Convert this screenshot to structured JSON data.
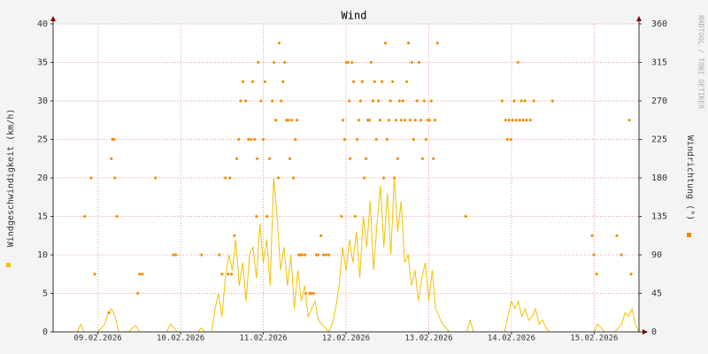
{
  "chart_data": {
    "type": "line",
    "title": "Wind",
    "ylabel": "Windgeschwindigkeit (km/h)",
    "y2label": "Windrichtung (°)",
    "watermark": "RRDTOOL / TOBI OETIKER",
    "xlim": [
      0,
      170
    ],
    "xticks": [
      {
        "value": 13,
        "label": "09.02.2026"
      },
      {
        "value": 37,
        "label": "10.02.2026"
      },
      {
        "value": 61,
        "label": "11.02.2026"
      },
      {
        "value": 85,
        "label": "12.02.2026"
      },
      {
        "value": 109,
        "label": "13.02.2026"
      },
      {
        "value": 133,
        "label": "14.02.2026"
      },
      {
        "value": 157,
        "label": "15.02.2026"
      }
    ],
    "ylim": [
      0,
      40
    ],
    "yticks": [
      0,
      5,
      10,
      15,
      20,
      25,
      30,
      35,
      40
    ],
    "y2lim": [
      0,
      360
    ],
    "y2ticks": [
      0,
      45,
      90,
      135,
      180,
      225,
      270,
      315,
      360
    ],
    "grid": true,
    "series": [
      {
        "color": "#f2c200",
        "style": "line",
        "x": [
          0,
          1,
          2,
          3,
          4,
          5,
          6,
          7,
          8,
          9,
          10,
          11,
          12,
          13,
          14,
          15,
          16,
          17,
          18,
          19,
          20,
          21,
          22,
          23,
          24,
          25,
          26,
          27,
          28,
          29,
          30,
          31,
          32,
          33,
          34,
          35,
          36,
          37,
          38,
          39,
          40,
          41,
          42,
          43,
          44,
          45,
          46,
          47,
          48,
          49,
          50,
          51,
          52,
          53,
          54,
          55,
          56,
          57,
          58,
          59,
          60,
          61,
          62,
          63,
          64,
          65,
          66,
          67,
          68,
          69,
          70,
          71,
          72,
          73,
          74,
          75,
          76,
          77,
          78,
          79,
          80,
          81,
          82,
          83,
          84,
          85,
          86,
          87,
          88,
          89,
          90,
          91,
          92,
          93,
          94,
          95,
          96,
          97,
          98,
          99,
          100,
          101,
          102,
          103,
          104,
          105,
          106,
          107,
          108,
          109,
          110,
          111,
          112,
          113,
          114,
          115,
          116,
          117,
          118,
          119,
          120,
          121,
          122,
          123,
          124,
          125,
          126,
          127,
          128,
          129,
          130,
          131,
          132,
          133,
          134,
          135,
          136,
          137,
          138,
          139,
          140,
          141,
          142,
          143,
          144,
          145,
          146,
          147,
          148,
          149,
          150,
          151,
          152,
          153,
          154,
          155,
          156,
          157,
          158,
          159,
          160,
          161,
          162,
          163,
          164,
          165,
          166,
          167,
          168,
          169,
          170
        ],
        "values": [
          0,
          0,
          0,
          0,
          0,
          0,
          0,
          0,
          1,
          0,
          0,
          0,
          0,
          0,
          0.5,
          1,
          2.5,
          3,
          2,
          0,
          0,
          0,
          0,
          0.5,
          0.8,
          0,
          0,
          0,
          0,
          0,
          0,
          0,
          0,
          0,
          1,
          0.5,
          0,
          0,
          0,
          0,
          0,
          0,
          0,
          0.5,
          0,
          0,
          0,
          3,
          5,
          2,
          7,
          10,
          8,
          12,
          6,
          9,
          4,
          10,
          11,
          7,
          14,
          9,
          12,
          6,
          20,
          15,
          8,
          11,
          6,
          10,
          3,
          8,
          4,
          6,
          2,
          3,
          4,
          1.5,
          1,
          0.5,
          0,
          1,
          3,
          6,
          11,
          8,
          12,
          9,
          13,
          7,
          15,
          11,
          17,
          8,
          14,
          19,
          11,
          18,
          10,
          20,
          13,
          17,
          9,
          10,
          6,
          8,
          4,
          7,
          9,
          4,
          8,
          3,
          2,
          1,
          0.5,
          0,
          0,
          0,
          0,
          0,
          0,
          1.5,
          0,
          0,
          0,
          0,
          0,
          0,
          0,
          0,
          0,
          0,
          2,
          4,
          3,
          4,
          2,
          3,
          1.5,
          2,
          3,
          1,
          1.5,
          0.5,
          0,
          0,
          0,
          0,
          0,
          0,
          0,
          0,
          0,
          0,
          0,
          0,
          0,
          0,
          1,
          0.5,
          0,
          0,
          0,
          0,
          0.5,
          1,
          2.5,
          2,
          3,
          1,
          0
        ]
      },
      {
        "color": "#f08c00",
        "style": "points",
        "axis": "y2",
        "x": [
          9.2,
          11,
          12.1,
          16.2,
          16.9,
          17.2,
          17.7,
          17.9,
          18.5,
          24.6,
          25.1,
          25.9,
          29.7,
          34.9,
          35.6,
          43.1,
          48.2,
          49,
          50,
          50.8,
          51.3,
          51.8,
          52.6,
          53.3,
          53.9,
          54.4,
          55.1,
          55.9,
          56.7,
          57.4,
          57.9,
          58.5,
          59,
          59.2,
          59.5,
          60.3,
          61,
          61.5,
          62.1,
          62.8,
          63.6,
          64.1,
          64.6,
          65.4,
          65.6,
          66.2,
          66.7,
          67.2,
          67.7,
          68.2,
          68.7,
          69.2,
          69.7,
          70.3,
          70.8,
          71.3,
          71.8,
          72.3,
          73.1,
          73.3,
          74.4,
          74.9,
          75.6,
          76.4,
          76.9,
          77.7,
          78.5,
          79.2,
          80,
          83.6,
          84.1,
          84.6,
          85.1,
          85.6,
          85.9,
          86.2,
          86.7,
          87.2,
          87.7,
          88.2,
          88.7,
          89.2,
          89.7,
          90.3,
          90.8,
          91.3,
          91.8,
          92.3,
          92.8,
          93.3,
          93.8,
          94.4,
          94.9,
          95.4,
          95.9,
          96.4,
          96.9,
          97.4,
          97.9,
          98.5,
          99,
          99.5,
          100,
          100.5,
          101,
          101.5,
          102.1,
          102.6,
          103.1,
          103.6,
          104.1,
          104.6,
          105.1,
          105.6,
          106.2,
          106.7,
          107.2,
          107.7,
          108.2,
          108.7,
          109.2,
          109.7,
          110.3,
          110.8,
          111.5,
          119.7,
          130.3,
          131.3,
          131.8,
          132.3,
          132.8,
          133.3,
          133.8,
          134.4,
          134.9,
          135.4,
          135.9,
          136.4,
          136.9,
          137.4,
          138.5,
          139.5,
          144.9,
          156.4,
          156.9,
          157.7,
          163.6,
          164.9,
          167.2,
          167.7
        ],
        "values": [
          135,
          180,
          67.5,
          22.5,
          202.5,
          225,
          225,
          180,
          135,
          45,
          67.5,
          67.5,
          180,
          90,
          90,
          90,
          90,
          67.5,
          180,
          67.5,
          180,
          67.5,
          112.5,
          202.5,
          225,
          270,
          292.5,
          270,
          225,
          225,
          292.5,
          225,
          135,
          202.5,
          315,
          270,
          225,
          292.5,
          135,
          202.5,
          270,
          315,
          247.5,
          180,
          337.5,
          270,
          292.5,
          315,
          247.5,
          247.5,
          202.5,
          247.5,
          180,
          225,
          247.5,
          90,
          90,
          90,
          90,
          45,
          45,
          45,
          45,
          90,
          90,
          112.5,
          90,
          90,
          90,
          135,
          247.5,
          225,
          315,
          315,
          270,
          202.5,
          315,
          292.5,
          135,
          225,
          247.5,
          270,
          292.5,
          180,
          202.5,
          247.5,
          247.5,
          315,
          270,
          292.5,
          225,
          270,
          247.5,
          292.5,
          180,
          337.5,
          225,
          247.5,
          270,
          292.5,
          180,
          247.5,
          202.5,
          270,
          247.5,
          270,
          247.5,
          292.5,
          337.5,
          247.5,
          315,
          225,
          247.5,
          270,
          315,
          247.5,
          202.5,
          270,
          225,
          247.5,
          247.5,
          270,
          202.5,
          247.5,
          337.5,
          135,
          270,
          247.5,
          225,
          247.5,
          225,
          247.5,
          270,
          247.5,
          315,
          247.5,
          270,
          247.5,
          270,
          247.5,
          247.5,
          270,
          270,
          112.5,
          90,
          67.5,
          112.5,
          90,
          247.5,
          67.5
        ]
      }
    ]
  }
}
